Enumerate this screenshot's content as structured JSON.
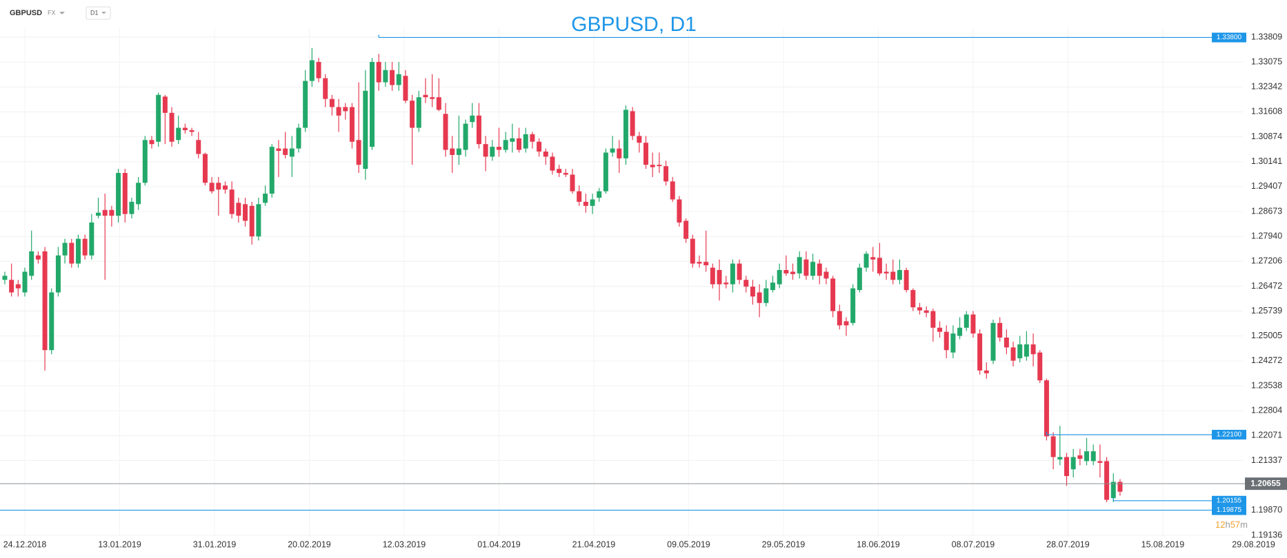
{
  "toolbar": {
    "symbol": "GBPUSD",
    "market": "FX",
    "timeframe": "D1"
  },
  "chart_data": {
    "type": "candlestick",
    "title": "GBPUSD, D1",
    "up_color": "#22a86a",
    "down_color": "#e63950",
    "grid": true,
    "open": [
      1.2666,
      1.2666,
      1.2653,
      1.2629,
      1.2678,
      1.2738,
      1.275,
      1.2459,
      1.2629,
      1.2738,
      1.2775,
      1.2714,
      1.2787,
      1.2738,
      1.2855,
      1.2872,
      1.2872,
      1.2855,
      1.2981,
      1.286,
      1.2889,
      1.2952,
      1.3078,
      1.3073,
      1.3206,
      1.3158,
      1.3078,
      1.3114,
      1.3107,
      1.3078,
      1.3037,
      1.2952,
      1.2952,
      1.2944,
      1.2932,
      1.2893,
      1.2889,
      1.2884,
      1.2794,
      1.2893,
      1.292,
      1.3053,
      1.3053,
      1.3029,
      1.3053,
      1.3114,
      1.3252,
      1.3308,
      1.326,
      1.3199,
      1.3175,
      1.3175,
      1.3175,
      1.3078,
      1.2993,
      1.3058,
      1.3308,
      1.3248,
      1.3284,
      1.324,
      1.3267,
      1.3194,
      1.3114,
      1.3211,
      1.3204,
      1.3204,
      1.3155,
      1.3053,
      1.3034,
      1.3049,
      1.3131,
      1.315,
      1.3066,
      1.3029,
      1.3058,
      1.3049,
      1.3073,
      1.3083,
      1.3053,
      1.3095,
      1.3073,
      1.3044,
      1.3029,
      1.2993,
      1.2981,
      1.2976,
      1.2927,
      1.2896,
      1.2884,
      1.2908,
      1.2927,
      1.3041,
      1.3053,
      1.3024,
      1.3163,
      1.309,
      1.307,
      1.3005,
      1.3005,
      1.3001,
      1.2956,
      1.2903,
      1.284,
      1.2787,
      1.2719,
      1.2719,
      1.2702,
      1.2695,
      1.2658,
      1.2653,
      1.2714,
      1.2666,
      1.2646,
      1.2629,
      1.2598,
      1.2636,
      1.2653,
      1.2695,
      1.269,
      1.2685,
      1.2726,
      1.2678,
      1.2714,
      1.269,
      1.267,
      1.2574,
      1.2544,
      1.2539,
      1.2636,
      1.2702,
      1.2733,
      1.2731,
      1.269,
      1.269,
      1.2666,
      1.2695,
      1.2636,
      1.2585,
      1.2576,
      1.2574,
      1.2525,
      1.2513,
      1.2452,
      1.2501,
      1.2525,
      1.2564,
      1.2508,
      1.2399,
      1.2428,
      1.2539,
      1.2496,
      1.2467,
      1.2435,
      1.244,
      1.2476,
      1.2452,
      1.237,
      1.2205,
      1.2137,
      1.2144,
      1.2108,
      1.2149,
      1.2132,
      1.2132,
      1.2132,
      1.2132,
      1.2023,
      1.2071
    ],
    "high": [
      1.269,
      1.2714,
      1.2666,
      1.2702,
      1.2811,
      1.275,
      1.2763,
      1.2641,
      1.2763,
      1.2787,
      1.2787,
      1.2799,
      1.2799,
      1.286,
      1.2908,
      1.292,
      1.2884,
      1.2993,
      1.2993,
      1.2908,
      1.2969,
      1.309,
      1.309,
      1.3218,
      1.3211,
      1.3175,
      1.315,
      1.3126,
      1.3114,
      1.3102,
      1.3041,
      1.2969,
      1.2969,
      1.2956,
      1.2956,
      1.2908,
      1.2908,
      1.2896,
      1.2908,
      1.2944,
      1.3066,
      1.3078,
      1.3102,
      1.309,
      1.3126,
      1.3284,
      1.3349,
      1.332,
      1.3272,
      1.3211,
      1.3199,
      1.3187,
      1.3187,
      1.3248,
      1.3284,
      1.332,
      1.3332,
      1.3308,
      1.3308,
      1.3308,
      1.3284,
      1.3211,
      1.3223,
      1.326,
      1.3272,
      1.326,
      1.3187,
      1.309,
      1.315,
      1.3138,
      1.3187,
      1.3187,
      1.309,
      1.3078,
      1.3114,
      1.3102,
      1.3126,
      1.3114,
      1.3114,
      1.3102,
      1.3083,
      1.3053,
      1.3041,
      1.3005,
      1.2993,
      1.2993,
      1.2944,
      1.292,
      1.292,
      1.2937,
      1.3053,
      1.309,
      1.3078,
      1.318,
      1.3175,
      1.3102,
      1.309,
      1.3041,
      1.3041,
      1.3017,
      1.2969,
      1.2913,
      1.2847,
      1.2799,
      1.2738,
      1.2811,
      1.2714,
      1.2726,
      1.2678,
      1.2726,
      1.2726,
      1.2678,
      1.2666,
      1.2653,
      1.2666,
      1.2678,
      1.2714,
      1.2738,
      1.2714,
      1.275,
      1.275,
      1.2743,
      1.2726,
      1.2702,
      1.2678,
      1.2593,
      1.2556,
      1.2653,
      1.2714,
      1.275,
      1.2763,
      1.2775,
      1.2714,
      1.2726,
      1.2726,
      1.2702,
      1.2641,
      1.2598,
      1.2588,
      1.2581,
      1.2544,
      1.2532,
      1.2532,
      1.2556,
      1.2574,
      1.2574,
      1.252,
      1.2423,
      1.2549,
      1.2556,
      1.252,
      1.2484,
      1.2501,
      1.2515,
      1.2508,
      1.2459,
      1.2375,
      1.2217,
      1.2236,
      1.2156,
      1.2168,
      1.2168,
      1.22,
      1.2181,
      1.2181,
      1.2144,
      1.2096,
      1.2079
    ],
    "low": [
      1.2653,
      1.2617,
      1.2617,
      1.2617,
      1.2666,
      1.2714,
      1.2399,
      1.2447,
      1.2617,
      1.2714,
      1.2702,
      1.2702,
      1.2726,
      1.2726,
      1.2847,
      1.2666,
      1.2823,
      1.2835,
      1.2835,
      1.2847,
      1.2872,
      1.2944,
      1.3053,
      1.3058,
      1.3066,
      1.3058,
      1.3066,
      1.3097,
      1.309,
      1.3024,
      1.2944,
      1.292,
      1.2855,
      1.292,
      1.2847,
      1.2835,
      1.2823,
      1.277,
      1.2782,
      1.2884,
      1.2908,
      1.2969,
      1.3024,
      1.2969,
      1.3041,
      1.3102,
      1.3235,
      1.3248,
      1.3175,
      1.315,
      1.3102,
      1.3138,
      1.3053,
      1.2981,
      1.2961,
      1.3049,
      1.3223,
      1.3235,
      1.3223,
      1.3223,
      1.3187,
      1.3005,
      1.3102,
      1.3187,
      1.3175,
      1.3163,
      1.3029,
      1.2981,
      1.3005,
      1.3029,
      1.3114,
      1.3053,
      1.2986,
      1.3017,
      1.3029,
      1.3041,
      1.3041,
      1.3041,
      1.3041,
      1.3053,
      1.3029,
      1.3005,
      1.2976,
      1.2969,
      1.2969,
      1.292,
      1.2884,
      1.2864,
      1.286,
      1.2896,
      1.292,
      1.3029,
      1.2981,
      1.3005,
      1.3078,
      1.3041,
      1.2993,
      1.2969,
      1.2981,
      1.2944,
      1.2896,
      1.2823,
      1.2775,
      1.2702,
      1.2702,
      1.269,
      1.2641,
      1.2605,
      1.2641,
      1.2629,
      1.2653,
      1.2629,
      1.2593,
      1.2556,
      1.2588,
      1.2629,
      1.2641,
      1.2678,
      1.2666,
      1.267,
      1.2666,
      1.2666,
      1.2653,
      1.2653,
      1.2556,
      1.252,
      1.2501,
      1.2532,
      1.2629,
      1.269,
      1.269,
      1.2678,
      1.2666,
      1.2653,
      1.2653,
      1.2629,
      1.2574,
      1.2564,
      1.2556,
      1.2484,
      1.2496,
      1.2435,
      1.2435,
      1.2491,
      1.2515,
      1.2496,
      1.2387,
      1.2375,
      1.2418,
      1.2484,
      1.2447,
      1.2411,
      1.2423,
      1.2428,
      1.2411,
      1.2362,
      1.2193,
      1.2108,
      1.212,
      1.2059,
      1.2084,
      1.212,
      1.212,
      1.212,
      1.2084,
      1.2011,
      1.2011,
      1.203
    ],
    "close": [
      1.2678,
      1.2629,
      1.2641,
      1.269,
      1.275,
      1.2726,
      1.2459,
      1.2629,
      1.2738,
      1.2775,
      1.2714,
      1.2787,
      1.2738,
      1.2835,
      1.2864,
      1.2855,
      1.2855,
      1.2981,
      1.286,
      1.2896,
      1.2952,
      1.3078,
      1.3066,
      1.3211,
      1.3158,
      1.3073,
      1.3114,
      1.3107,
      1.3102,
      1.3037,
      1.2952,
      1.2927,
      1.2932,
      1.2932,
      1.286,
      1.2855,
      1.284,
      1.2794,
      1.2889,
      1.292,
      1.3058,
      1.3046,
      1.3034,
      1.3053,
      1.3114,
      1.3252,
      1.3313,
      1.326,
      1.3199,
      1.3175,
      1.315,
      1.3163,
      1.3073,
      1.3005,
      1.3223,
      1.3308,
      1.3248,
      1.3284,
      1.324,
      1.3272,
      1.3194,
      1.3114,
      1.3204,
      1.3204,
      1.3199,
      1.3167,
      1.3049,
      1.3034,
      1.3053,
      1.3126,
      1.315,
      1.3066,
      1.3029,
      1.3058,
      1.3049,
      1.3078,
      1.3083,
      1.3049,
      1.3095,
      1.3073,
      1.3044,
      1.3029,
      1.2988,
      1.2981,
      1.2976,
      1.2927,
      1.2896,
      1.2884,
      1.2903,
      1.2927,
      1.3041,
      1.3053,
      1.3024,
      1.3167,
      1.309,
      1.307,
      1.3005,
      1.2998,
      1.3001,
      1.2956,
      1.2903,
      1.2835,
      1.2787,
      1.2714,
      1.2714,
      1.2709,
      1.2653,
      1.2653,
      1.2653,
      1.2714,
      1.2666,
      1.2646,
      1.2617,
      1.2598,
      1.2641,
      1.2658,
      1.2695,
      1.2685,
      1.2683,
      1.2733,
      1.2678,
      1.2719,
      1.2678,
      1.267,
      1.2574,
      1.2532,
      1.2532,
      1.2641,
      1.2702,
      1.2743,
      1.2726,
      1.2685,
      1.2685,
      1.2666,
      1.2695,
      1.2636,
      1.2585,
      1.2576,
      1.2569,
      1.2525,
      1.2513,
      1.2459,
      1.2508,
      1.2525,
      1.2564,
      1.2508,
      1.2399,
      1.2391,
      1.2539,
      1.2496,
      1.2467,
      1.2428,
      1.2476,
      1.2476,
      1.2447,
      1.237,
      1.2205,
      1.2144,
      1.2144,
      1.2088,
      1.2144,
      1.2139,
      1.2161,
      1.2161,
      1.2127,
      1.2018,
      1.2071,
      1.2042
    ],
    "xlim": [
      -0.72,
      192
    ],
    "xticks": [
      {
        "value": 3,
        "label": "24.12.2018"
      },
      {
        "value": 17.2,
        "label": "13.01.2019"
      },
      {
        "value": 31.4,
        "label": "31.01.2019"
      },
      {
        "value": 45.6,
        "label": "20.02.2019"
      },
      {
        "value": 59.8,
        "label": "12.03.2019"
      },
      {
        "value": 74,
        "label": "01.04.2019"
      },
      {
        "value": 88.2,
        "label": "21.04.2019"
      },
      {
        "value": 102.4,
        "label": "09.05.2019"
      },
      {
        "value": 116.6,
        "label": "29.05.2019"
      },
      {
        "value": 130.8,
        "label": "18.06.2019"
      },
      {
        "value": 145,
        "label": "08.07.2019"
      },
      {
        "value": 159.2,
        "label": "28.07.2019"
      },
      {
        "value": 173.4,
        "label": "15.08.2019"
      },
      {
        "value": 187,
        "label": "29.08.2019"
      }
    ],
    "ylim": [
      1.19136,
      1.33809
    ],
    "yticks": [
      1.33809,
      1.33075,
      1.32342,
      1.31608,
      1.30874,
      1.30141,
      1.29407,
      1.28673,
      {
        "value": 1.2794,
        "label": "1.27940"
      },
      1.27206,
      1.26472,
      1.25739,
      1.25005,
      1.24272,
      1.23538,
      1.22804,
      1.22071,
      1.21337,
      {
        "value": 1.1987,
        "label": "1.19870"
      },
      1.19136
    ],
    "levels": [
      {
        "price": 1.338,
        "label": "1.33800",
        "start": 56
      },
      {
        "price": 1.221,
        "label": "1.22100",
        "start": 156
      },
      {
        "price": 1.20155,
        "label": "1.20155",
        "start": 166
      },
      {
        "price": 1.19875,
        "label": "1.19875"
      }
    ],
    "last_price": 1.20655,
    "countdown": [
      "12",
      "h",
      "57",
      "m"
    ]
  }
}
